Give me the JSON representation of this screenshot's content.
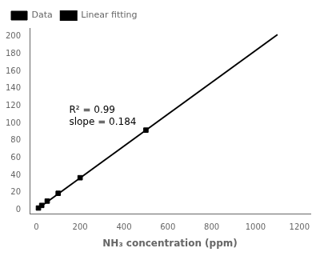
{
  "chart_data": {
    "type": "scatter",
    "xlabel": "NH₃ concentration (ppm)",
    "series": [
      {
        "name": "Data",
        "type": "scatter",
        "color": "black",
        "marker": "square",
        "x": [
          10,
          25,
          50,
          100,
          200,
          500
        ],
        "values": [
          2,
          5,
          10,
          19,
          37,
          92
        ]
      },
      {
        "name": "Linear fitting",
        "type": "line",
        "color": "black",
        "line_style": "solid",
        "x": [
          0,
          1100
        ],
        "values": [
          0,
          202.4
        ]
      }
    ],
    "annotations": [
      {
        "text": "R² = 0.99\nslope = 0.184",
        "x": 150,
        "y": 120
      }
    ],
    "xlim": [
      -30,
      1250
    ],
    "ylim": [
      -5,
      210
    ],
    "xticks": [
      0,
      200,
      400,
      600,
      800,
      1000,
      1200
    ],
    "yticks": [
      0,
      20,
      40,
      60,
      80,
      100,
      120,
      140,
      160,
      180,
      200
    ],
    "grid": false,
    "legend": "upper left"
  }
}
